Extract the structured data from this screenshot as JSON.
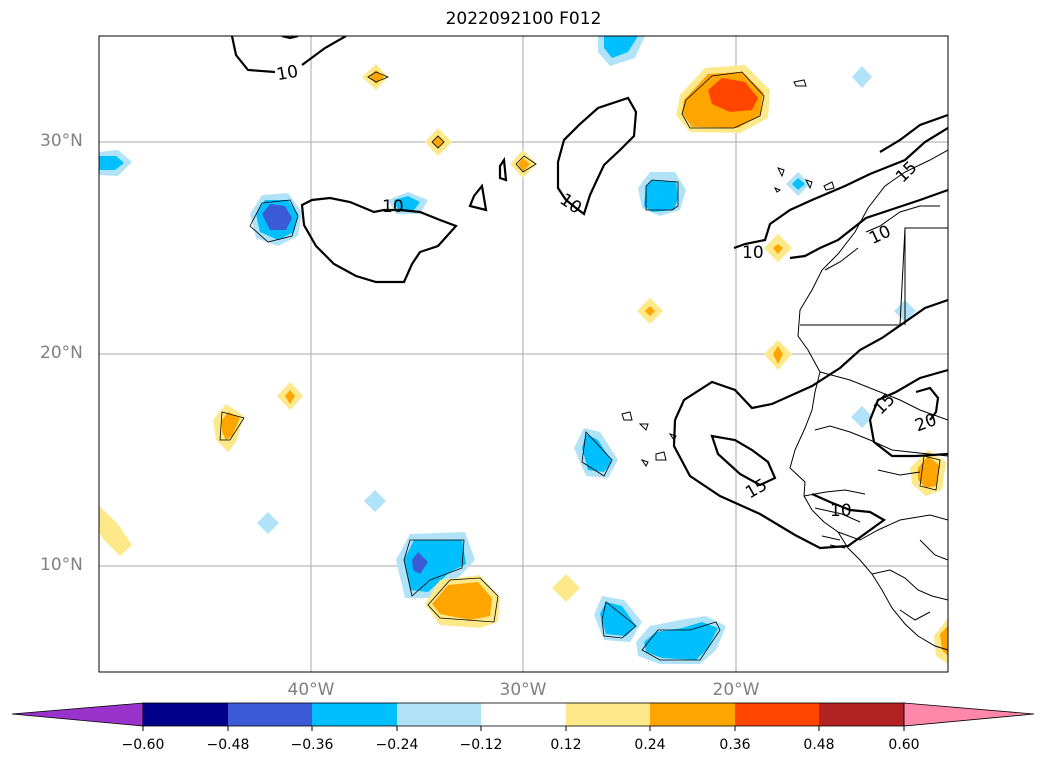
{
  "title": "2022092100 F012",
  "latitude_labels": [
    "30°N",
    "20°N",
    "10°N"
  ],
  "longitude_labels": [
    "40°W",
    "30°W",
    "20°W"
  ],
  "contour_labels": [
    "10",
    "10",
    "10",
    "10",
    "10",
    "10",
    "15",
    "15",
    "15",
    "20"
  ],
  "colorbar": {
    "ticks": [
      "−0.60",
      "−0.48",
      "−0.36",
      "−0.24",
      "−0.12",
      "0.12",
      "0.24",
      "0.36",
      "0.48",
      "0.60"
    ],
    "colors": [
      "#9933cc",
      "#00008b",
      "#3b5bd6",
      "#00bfff",
      "#b0e2f8",
      "#ffffff",
      "#fde98a",
      "#ffa500",
      "#ff4500",
      "#b22222",
      "#ff88aa"
    ]
  },
  "map_extent": {
    "lon_min": -50,
    "lon_max": -10,
    "lat_min": 5,
    "lat_max": 35
  }
}
